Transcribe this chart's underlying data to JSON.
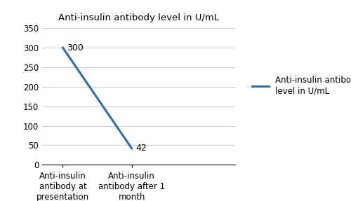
{
  "title": "Anti-insulin antibody level in U/mL",
  "x_labels": [
    "Anti-insulin\nantibody at\npresentation",
    "Anti-insulin\nantibody after 1\nmonth"
  ],
  "x_values": [
    0,
    1
  ],
  "y_values": [
    300,
    42
  ],
  "y_annotations": [
    "300",
    "42"
  ],
  "ylim": [
    0,
    350
  ],
  "yticks": [
    0,
    50,
    100,
    150,
    200,
    250,
    300,
    350
  ],
  "xlim": [
    -0.3,
    2.5
  ],
  "line_color": "#2E6DA4",
  "line_width": 2.2,
  "legend_label": "Anti-insulin antibody\nlevel in U/mL",
  "bg_color": "#ffffff",
  "title_fontsize": 9.5,
  "annotation_fontsize": 9,
  "tick_fontsize": 8.5
}
